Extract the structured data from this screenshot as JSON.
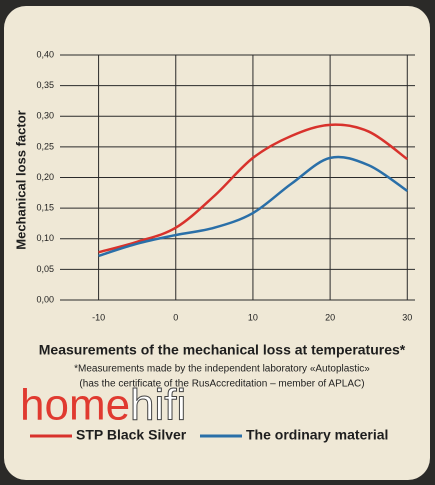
{
  "chart_data": {
    "type": "line",
    "y_label": "Mechanical loss factor",
    "x_label": "Measurements of the mechanical loss at temperatures*",
    "notes": [
      "*Measurements made by the independent laboratory «Autoplastic»",
      "(has the certificate of the RusAccreditation – member of APLAC)"
    ],
    "watermark": {
      "left": "home",
      "right": "hifi"
    },
    "x": [
      -10,
      -5,
      0,
      5,
      10,
      15,
      20,
      25,
      30
    ],
    "series": [
      {
        "name": "STP Black Silver",
        "color": "#d8322c",
        "values": [
          0.078,
          0.095,
          0.118,
          0.17,
          0.232,
          0.268,
          0.286,
          0.275,
          0.23
        ]
      },
      {
        "name": "The ordinary material",
        "color": "#2a6fa8",
        "values": [
          0.072,
          0.092,
          0.106,
          0.118,
          0.142,
          0.19,
          0.232,
          0.22,
          0.178
        ]
      }
    ],
    "xlim": [
      -15,
      31
    ],
    "xticks": [
      -10,
      0,
      10,
      20,
      30
    ],
    "ylim": [
      0,
      0.4
    ],
    "yticks": [
      {
        "value": 0,
        "label": "0,00"
      },
      {
        "value": 0.05,
        "label": "0,05"
      },
      {
        "value": 0.1,
        "label": "0,10"
      },
      {
        "value": 0.15,
        "label": "0,15"
      },
      {
        "value": 0.2,
        "label": "0,20"
      },
      {
        "value": 0.25,
        "label": "0,25"
      },
      {
        "value": 0.3,
        "label": "0,30"
      },
      {
        "value": 0.35,
        "label": "0,35"
      },
      {
        "value": 0.4,
        "label": "0,40"
      }
    ],
    "grid": true
  }
}
